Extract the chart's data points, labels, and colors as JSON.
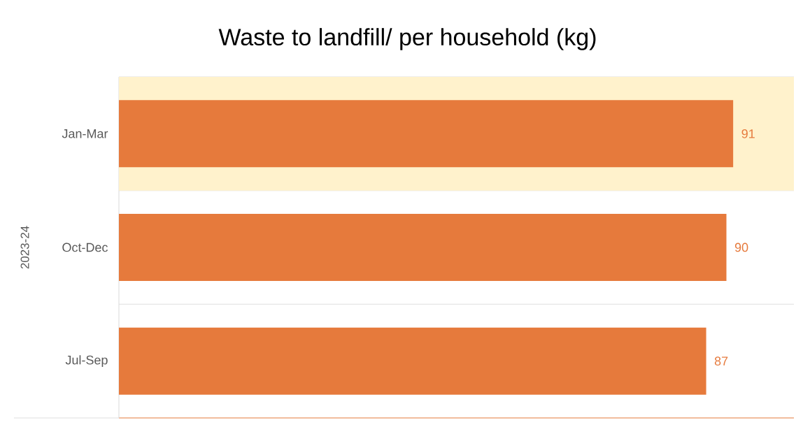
{
  "chart_data": {
    "type": "bar",
    "orientation": "horizontal",
    "title": "Waste to landfill/ per household (kg)",
    "ylabel": "2023-24",
    "categories": [
      "Jan-Mar",
      "Oct-Dec",
      "Jul-Sep"
    ],
    "values": [
      91,
      90,
      87
    ],
    "color": "#e67a3c",
    "data_labels": true,
    "xlim": [
      0,
      100
    ],
    "tick_labels": "y",
    "grid": "y",
    "bands": [
      {
        "axis": "y",
        "from": "Jan-Mar",
        "to": "Jan-Mar",
        "color": "#fff2cc"
      }
    ]
  }
}
